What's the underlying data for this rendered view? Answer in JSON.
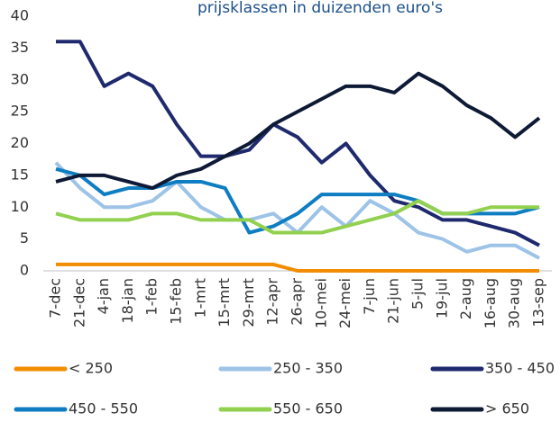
{
  "chart_data": {
    "type": "line",
    "title": "prijsklassen in duizenden euro's",
    "categories": [
      "7-dec",
      "21-dec",
      "4-jan",
      "18-jan",
      "1-feb",
      "15-feb",
      "1-mrt",
      "15-mrt",
      "29-mrt",
      "12-apr",
      "26-apr",
      "10-mei",
      "24-mei",
      "7-jun",
      "21-jun",
      "5-jul",
      "19-jul",
      "2-aug",
      "16-aug",
      "30-aug",
      "13-sep"
    ],
    "series": [
      {
        "name": "< 250",
        "color": "#f28c00",
        "values": [
          1,
          1,
          1,
          1,
          1,
          1,
          1,
          1,
          1,
          1,
          0,
          0,
          0,
          0,
          0,
          0,
          0,
          0,
          0,
          0,
          0
        ]
      },
      {
        "name": "250 - 350",
        "color": "#9dc3e6",
        "values": [
          17,
          13,
          10,
          10,
          11,
          14,
          10,
          8,
          8,
          9,
          6,
          10,
          7,
          11,
          9,
          6,
          5,
          3,
          4,
          4,
          2
        ]
      },
      {
        "name": "350 - 450",
        "color": "#1f2a6e",
        "values": [
          36,
          36,
          29,
          31,
          29,
          23,
          18,
          18,
          19,
          23,
          21,
          17,
          20,
          15,
          11,
          10,
          8,
          8,
          7,
          6,
          4
        ]
      },
      {
        "name": "450 - 550",
        "color": "#0f7dc2",
        "values": [
          16,
          15,
          12,
          13,
          13,
          14,
          14,
          13,
          6,
          7,
          9,
          12,
          12,
          12,
          12,
          11,
          9,
          9,
          9,
          9,
          10
        ]
      },
      {
        "name": "550 - 650",
        "color": "#92d050",
        "values": [
          9,
          8,
          8,
          8,
          9,
          9,
          8,
          8,
          8,
          6,
          6,
          6,
          7,
          8,
          9,
          11,
          9,
          9,
          10,
          10,
          10
        ]
      },
      {
        "name": "> 650",
        "color": "#0e1a35",
        "values": [
          14,
          15,
          15,
          14,
          13,
          15,
          16,
          18,
          20,
          23,
          25,
          27,
          29,
          29,
          28,
          31,
          29,
          26,
          24,
          21,
          24
        ]
      }
    ],
    "ylim": [
      0,
      40
    ],
    "yticks": [
      0,
      5,
      10,
      15,
      20,
      25,
      30,
      35,
      40
    ],
    "grid": false
  }
}
